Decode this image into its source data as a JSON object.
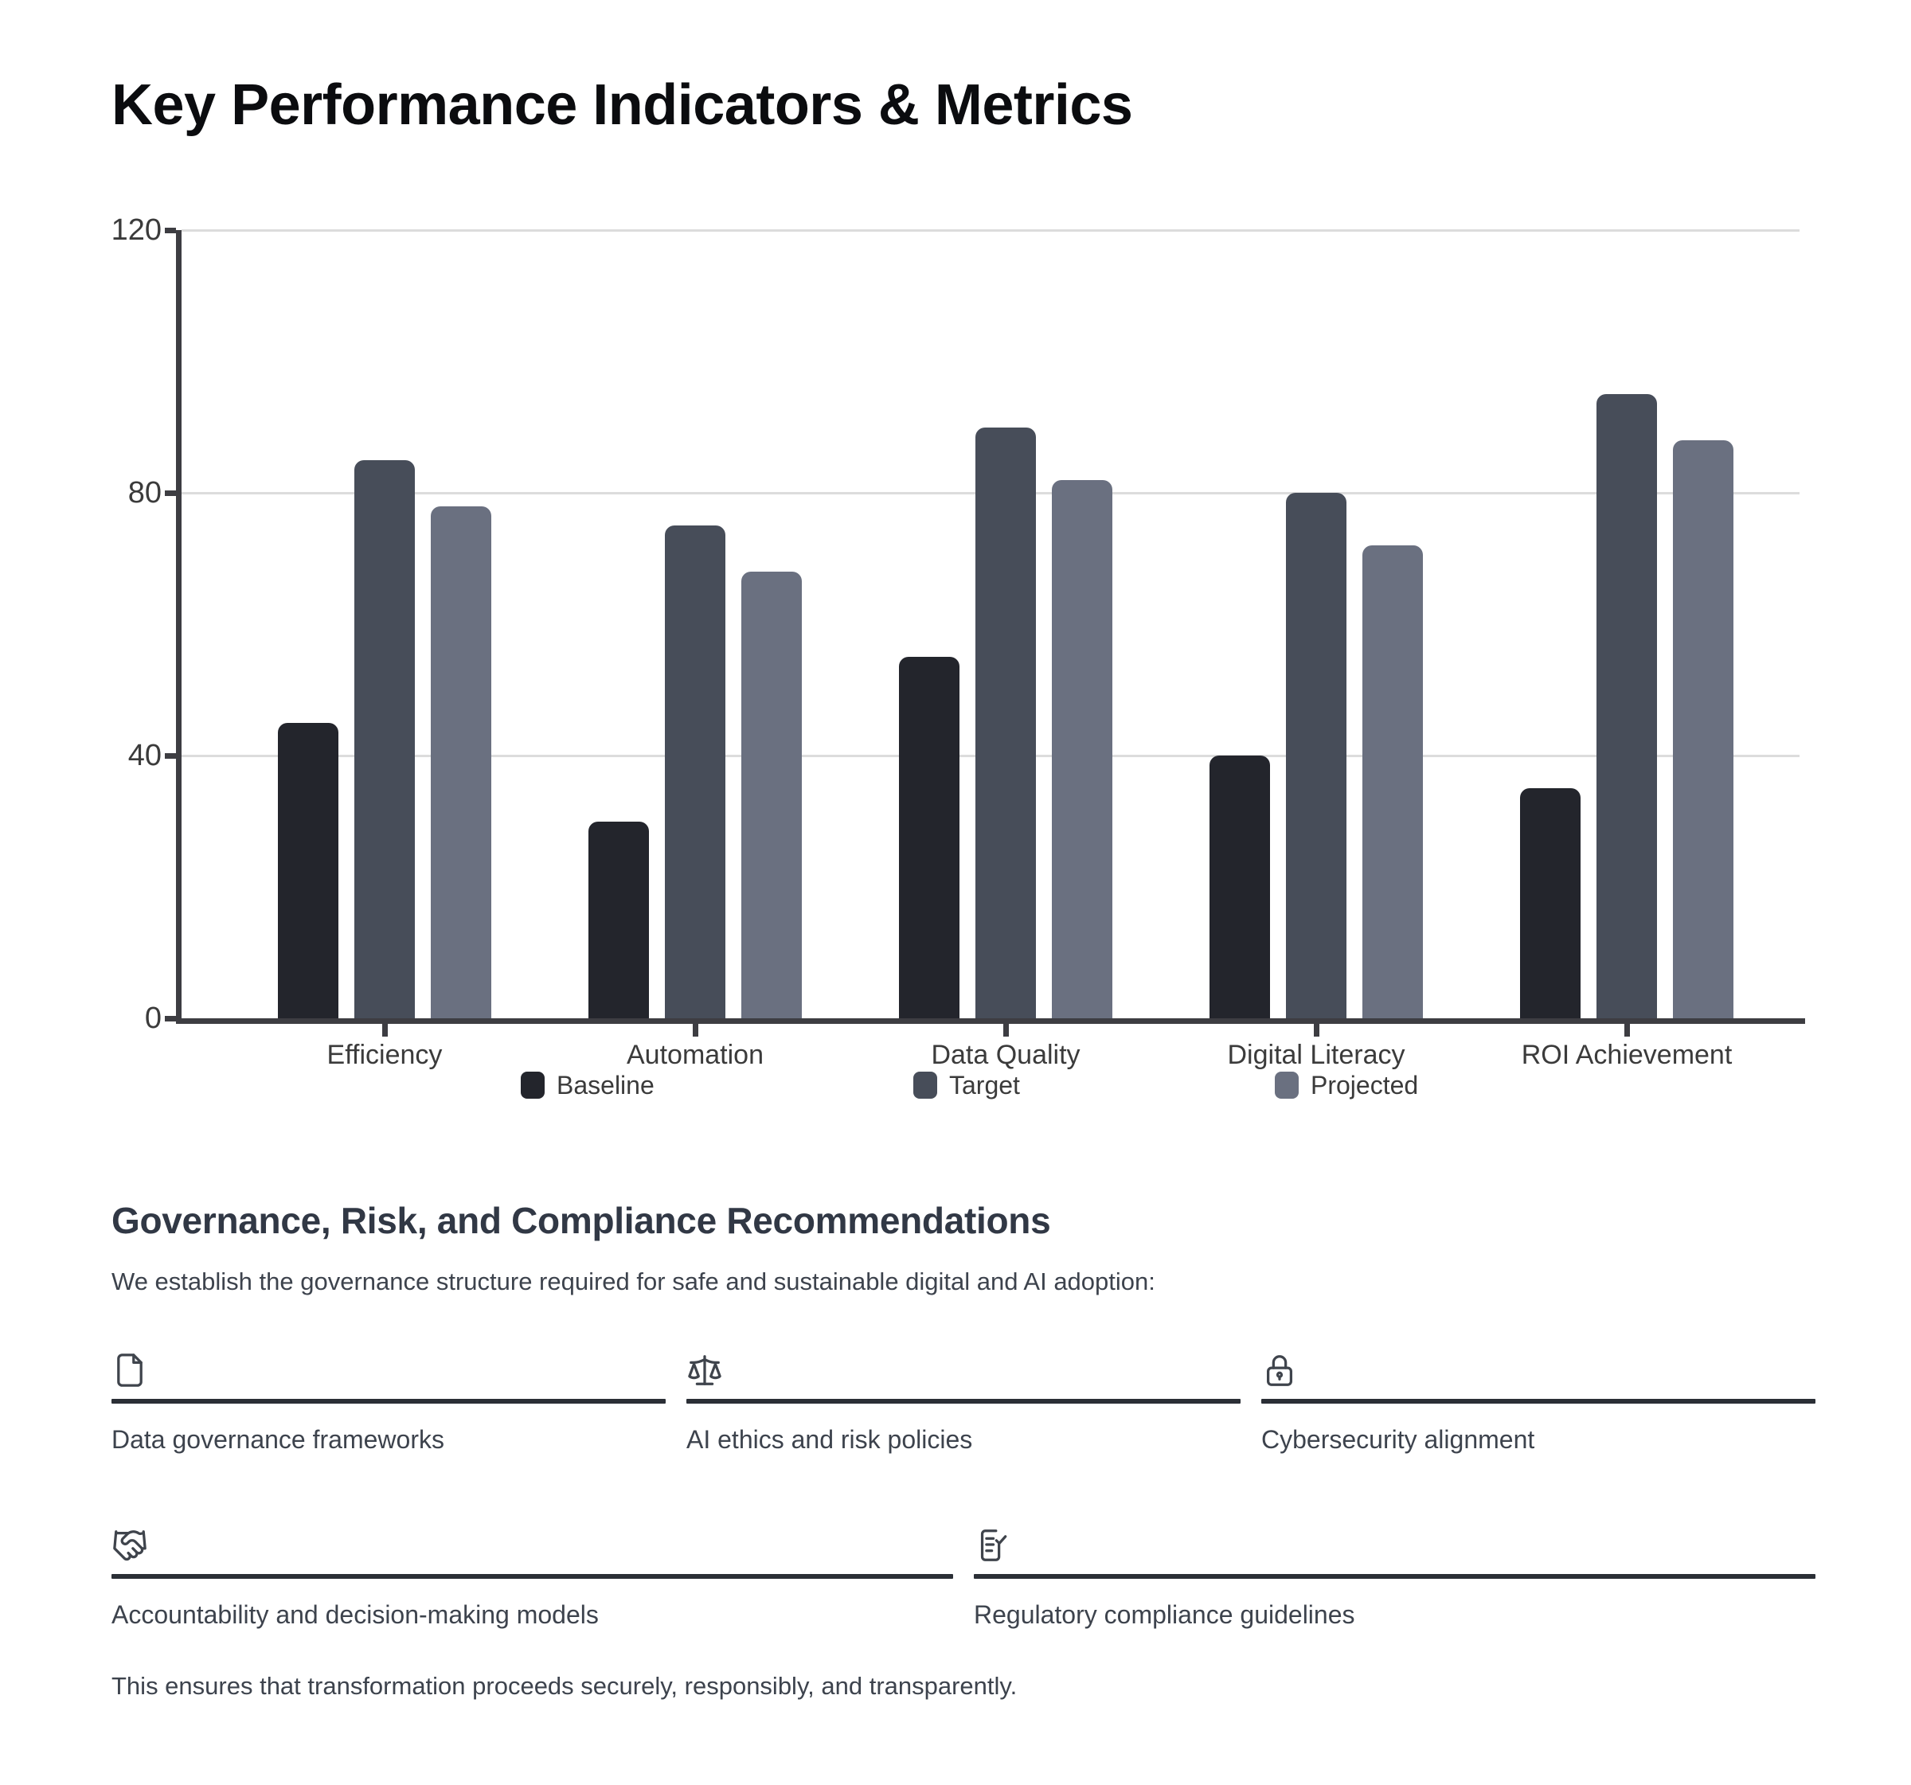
{
  "page": {
    "title": "Key Performance Indicators & Metrics"
  },
  "chart_data": {
    "type": "bar",
    "title": "Key Performance Indicators & Metrics",
    "categories": [
      "Efficiency",
      "Automation",
      "Data Quality",
      "Digital Literacy",
      "ROI Achievement"
    ],
    "series": [
      {
        "name": "Baseline",
        "values": [
          45,
          30,
          55,
          40,
          35
        ],
        "color": "#23252c"
      },
      {
        "name": "Target",
        "values": [
          85,
          75,
          90,
          80,
          95
        ],
        "color": "#474d59"
      },
      {
        "name": "Projected",
        "values": [
          78,
          68,
          82,
          72,
          88
        ],
        "color": "#6a7080"
      }
    ],
    "xlabel": "",
    "ylabel": "",
    "ylim": [
      0,
      120
    ],
    "yticks": [
      0,
      40,
      80,
      120
    ],
    "grid": "horizontal",
    "legend_position": "bottom"
  },
  "governance": {
    "heading": "Governance, Risk, and Compliance Recommendations",
    "intro": "We establish the governance structure required for safe and sustainable digital and AI adoption:",
    "items": [
      {
        "icon": "file-icon",
        "label": "Data governance frameworks"
      },
      {
        "icon": "scale-icon",
        "label": "AI ethics and risk policies"
      },
      {
        "icon": "lock-icon",
        "label": "Cybersecurity alignment"
      },
      {
        "icon": "handshake-icon",
        "label": "Accountability and decision-making models"
      },
      {
        "icon": "document-check-icon",
        "label": "Regulatory compliance guidelines"
      }
    ],
    "closing": "This ensures that transformation proceeds securely, responsibly, and transparently."
  },
  "colors": {
    "baseline": "#23252c",
    "target": "#474d59",
    "projected": "#6a7080",
    "axis": "#3d3d42",
    "gridline": "#dcdcdc",
    "rule": "#2b2f36",
    "text": "#3d434d"
  }
}
